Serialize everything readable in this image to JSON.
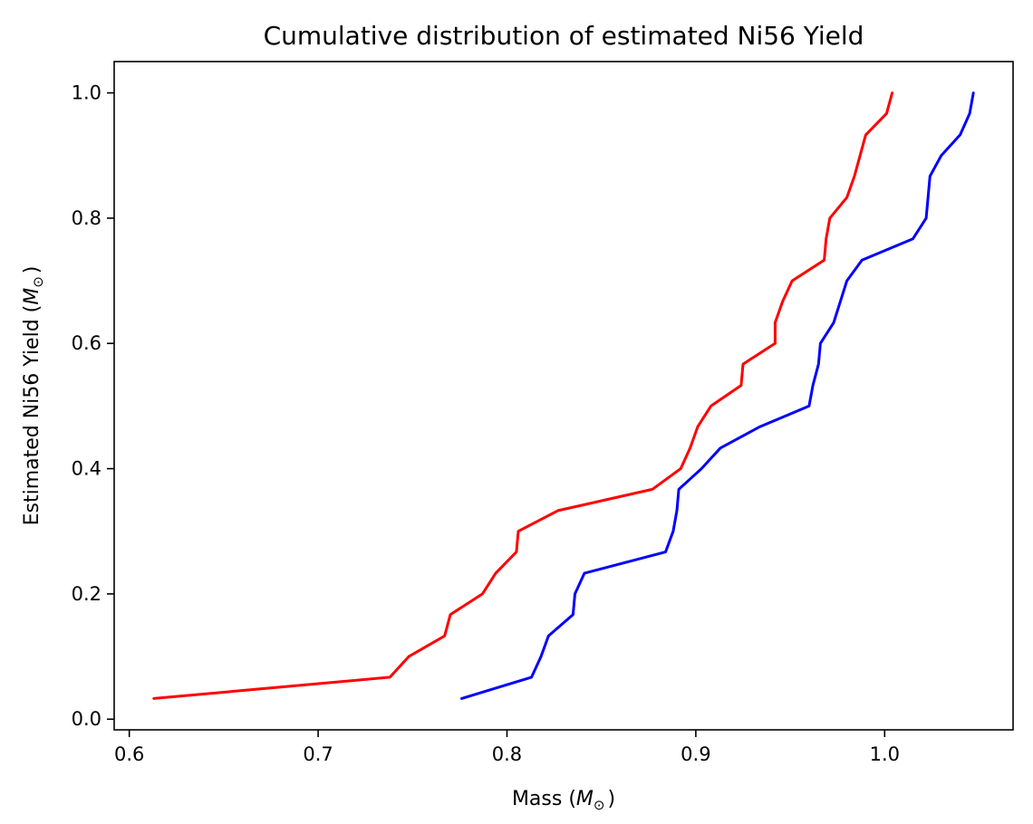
{
  "chart_data": {
    "type": "line",
    "title": "Cumulative distribution of estimated Ni56 Yield",
    "xlabel": "Mass (",
    "xlabel_unit": "M",
    "xlabel_sub": "⊙",
    "xlabel_close": ")",
    "ylabel": "Estimated Ni56 Yield (",
    "ylabel_unit": "M",
    "ylabel_sub": "⊙",
    "ylabel_close": ")",
    "xlim": [
      0.592,
      1.068
    ],
    "ylim": [
      -0.017,
      1.05
    ],
    "xticks": [
      0.6,
      0.7,
      0.8,
      0.9,
      1.0
    ],
    "xtick_labels": [
      "0.6",
      "0.7",
      "0.8",
      "0.9",
      "1.0"
    ],
    "yticks": [
      0.0,
      0.2,
      0.4,
      0.6,
      0.8,
      1.0
    ],
    "ytick_labels": [
      "0.0",
      "0.2",
      "0.4",
      "0.6",
      "0.8",
      "1.0"
    ],
    "grid": false,
    "series": [
      {
        "color": "#ff0000",
        "points": [
          [
            0.613,
            0.033
          ],
          [
            0.738,
            0.067
          ],
          [
            0.748,
            0.1
          ],
          [
            0.767,
            0.133
          ],
          [
            0.77,
            0.167
          ],
          [
            0.787,
            0.2
          ],
          [
            0.794,
            0.233
          ],
          [
            0.805,
            0.267
          ],
          [
            0.806,
            0.3
          ],
          [
            0.827,
            0.333
          ],
          [
            0.877,
            0.367
          ],
          [
            0.892,
            0.4
          ],
          [
            0.897,
            0.433
          ],
          [
            0.901,
            0.467
          ],
          [
            0.908,
            0.5
          ],
          [
            0.924,
            0.533
          ],
          [
            0.925,
            0.567
          ],
          [
            0.942,
            0.6
          ],
          [
            0.942,
            0.633
          ],
          [
            0.946,
            0.667
          ],
          [
            0.951,
            0.7
          ],
          [
            0.968,
            0.733
          ],
          [
            0.969,
            0.767
          ],
          [
            0.971,
            0.8
          ],
          [
            0.98,
            0.833
          ],
          [
            0.984,
            0.867
          ],
          [
            0.987,
            0.9
          ],
          [
            0.99,
            0.933
          ],
          [
            1.001,
            0.967
          ],
          [
            1.004,
            1.0
          ]
        ]
      },
      {
        "color": "#0000ff",
        "points": [
          [
            0.776,
            0.033
          ],
          [
            0.813,
            0.067
          ],
          [
            0.818,
            0.1
          ],
          [
            0.822,
            0.133
          ],
          [
            0.835,
            0.167
          ],
          [
            0.836,
            0.2
          ],
          [
            0.841,
            0.233
          ],
          [
            0.884,
            0.267
          ],
          [
            0.888,
            0.3
          ],
          [
            0.89,
            0.333
          ],
          [
            0.891,
            0.367
          ],
          [
            0.903,
            0.4
          ],
          [
            0.913,
            0.433
          ],
          [
            0.934,
            0.467
          ],
          [
            0.96,
            0.5
          ],
          [
            0.962,
            0.533
          ],
          [
            0.965,
            0.567
          ],
          [
            0.966,
            0.6
          ],
          [
            0.973,
            0.633
          ],
          [
            0.98,
            0.7
          ],
          [
            0.988,
            0.733
          ],
          [
            1.015,
            0.767
          ],
          [
            1.022,
            0.8
          ],
          [
            1.024,
            0.867
          ],
          [
            1.03,
            0.9
          ],
          [
            1.04,
            0.933
          ],
          [
            1.045,
            0.967
          ],
          [
            1.047,
            1.0
          ]
        ]
      }
    ]
  }
}
